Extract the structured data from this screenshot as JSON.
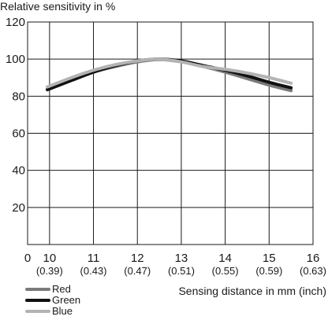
{
  "chart_data": {
    "type": "line",
    "ylabel": "Relative sensitivity in %",
    "xlabel": "Sensing distance in mm (inch)",
    "xlim": [
      9.5,
      16
    ],
    "ylim": [
      0,
      120
    ],
    "x_ticks": [
      {
        "value": 9.5,
        "label": "0",
        "sub": ""
      },
      {
        "value": 10,
        "label": "10",
        "sub": "(0.39)"
      },
      {
        "value": 11,
        "label": "11",
        "sub": "(0.43)"
      },
      {
        "value": 12,
        "label": "12",
        "sub": "(0.47)"
      },
      {
        "value": 13,
        "label": "13",
        "sub": "(0.51)"
      },
      {
        "value": 14,
        "label": "14",
        "sub": "(0.55)"
      },
      {
        "value": 15,
        "label": "15",
        "sub": "(0.59)"
      },
      {
        "value": 16,
        "label": "16",
        "sub": "(0.63)"
      }
    ],
    "y_ticks": [
      20,
      40,
      60,
      80,
      100,
      120
    ],
    "grid": true,
    "legend_position": "bottom-left",
    "series": [
      {
        "name": "Red",
        "color": "#7a7a7a",
        "x": [
          9.95,
          10.5,
          11.0,
          11.5,
          12.0,
          12.5,
          13.0,
          13.5,
          14.0,
          14.5,
          15.0,
          15.5
        ],
        "y": [
          84,
          89,
          93,
          96,
          98.5,
          99.8,
          98.5,
          96,
          93,
          89.5,
          86,
          83
        ]
      },
      {
        "name": "Green",
        "color": "#111111",
        "x": [
          9.95,
          10.5,
          11.0,
          11.5,
          12.0,
          12.5,
          13.0,
          13.5,
          14.0,
          14.5,
          15.0,
          15.5
        ],
        "y": [
          83.5,
          88.5,
          93,
          96.5,
          99,
          100,
          99,
          96.5,
          94,
          91,
          87.5,
          84.5
        ]
      },
      {
        "name": "Blue",
        "color": "#b3b3b3",
        "x": [
          9.95,
          10.5,
          11.0,
          11.5,
          12.0,
          12.5,
          13.0,
          13.5,
          14.0,
          14.5,
          15.0,
          15.5
        ],
        "y": [
          85,
          90,
          94,
          97,
          99,
          100,
          98.5,
          96,
          94.5,
          92.5,
          90,
          87
        ]
      }
    ]
  }
}
